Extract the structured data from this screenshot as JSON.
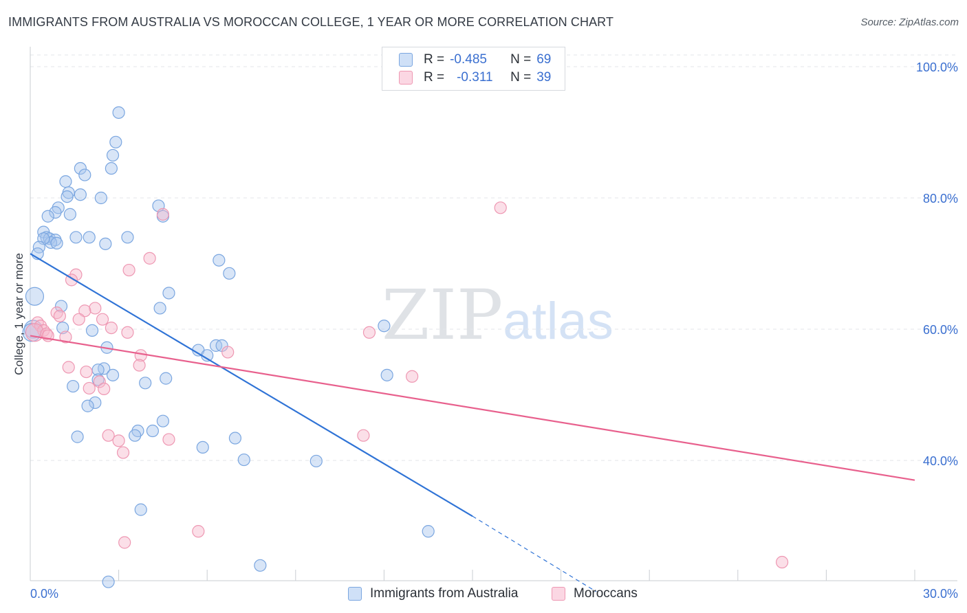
{
  "title": "IMMIGRANTS FROM AUSTRALIA VS MOROCCAN COLLEGE, 1 YEAR OR MORE CORRELATION CHART",
  "source": "Source: ZipAtlas.com",
  "watermark": {
    "zip": "ZIP",
    "atlas": "atlas"
  },
  "legend": {
    "rows": [
      {
        "r_label": "R =",
        "r_value": "-0.485",
        "n_label": "N =",
        "n_value": "69",
        "color": "#a9c6ee"
      },
      {
        "r_label": "R =",
        "r_value": "-0.311",
        "n_label": "N =",
        "n_value": "39",
        "color": "#f6b8cb"
      }
    ]
  },
  "bottom_legend": [
    {
      "label": "Immigrants from Australia",
      "color": "#a9c6ee"
    },
    {
      "label": "Moroccans",
      "color": "#f6b8cb"
    }
  ],
  "chart_data": {
    "type": "scatter",
    "title": "IMMIGRANTS FROM AUSTRALIA VS MOROCCAN COLLEGE, 1 YEAR OR MORE CORRELATION CHART",
    "xlabel": "",
    "ylabel": "College, 1 year or more",
    "xlim": [
      0,
      30
    ],
    "ylim": [
      22,
      102
    ],
    "x_tick_labels": [
      {
        "value": 0,
        "label": "0.0%"
      },
      {
        "value": 30,
        "label": "30.0%"
      }
    ],
    "x_minor_ticks": [
      0,
      3,
      6,
      9,
      12,
      15,
      18,
      21,
      24,
      27,
      30
    ],
    "y_ticks": [
      {
        "value": 100,
        "label": "100.0%"
      },
      {
        "value": 80,
        "label": "80.0%"
      },
      {
        "value": 60,
        "label": "60.0%"
      },
      {
        "value": 40,
        "label": "40.0%"
      }
    ],
    "series": [
      {
        "name": "Immigrants from Australia",
        "color": "#a9c6ee",
        "stroke": "#7aa6e0",
        "line_color": "#2f73d6",
        "trend": {
          "x0": 0.0,
          "y0": 71.5,
          "x1": 15.0,
          "y1": 31.5,
          "dash_to_x": 19.2,
          "dash_to_y": 20.0
        },
        "points": [
          [
            3.0,
            93.0
          ],
          [
            2.9,
            88.5
          ],
          [
            2.8,
            86.5
          ],
          [
            2.75,
            84.5
          ],
          [
            1.7,
            84.5
          ],
          [
            1.85,
            83.5
          ],
          [
            1.2,
            82.5
          ],
          [
            1.3,
            80.8
          ],
          [
            1.25,
            80.2
          ],
          [
            1.7,
            80.5
          ],
          [
            2.4,
            80.0
          ],
          [
            4.35,
            78.8
          ],
          [
            0.95,
            78.5
          ],
          [
            0.85,
            77.8
          ],
          [
            1.35,
            77.5
          ],
          [
            0.6,
            77.2
          ],
          [
            4.5,
            77.2
          ],
          [
            0.45,
            74.8
          ],
          [
            0.55,
            74.0
          ],
          [
            0.65,
            73.8
          ],
          [
            0.85,
            73.6
          ],
          [
            0.7,
            73.2
          ],
          [
            0.9,
            73.1
          ],
          [
            0.45,
            73.8
          ],
          [
            1.55,
            74.0
          ],
          [
            2.0,
            74.0
          ],
          [
            3.3,
            74.0
          ],
          [
            2.55,
            73.0
          ],
          [
            0.3,
            72.5
          ],
          [
            0.25,
            71.5
          ],
          [
            6.4,
            70.5
          ],
          [
            6.75,
            68.5
          ],
          [
            0.15,
            65.0
          ],
          [
            4.7,
            65.5
          ],
          [
            1.05,
            63.5
          ],
          [
            4.4,
            63.2
          ],
          [
            0.1,
            60.0
          ],
          [
            1.1,
            60.2
          ],
          [
            2.1,
            59.8
          ],
          [
            12.0,
            60.5
          ],
          [
            2.6,
            57.2
          ],
          [
            5.7,
            56.8
          ],
          [
            6.3,
            57.5
          ],
          [
            6.5,
            57.5
          ],
          [
            6.0,
            56.0
          ],
          [
            2.5,
            54.0
          ],
          [
            2.3,
            53.8
          ],
          [
            12.1,
            53.0
          ],
          [
            2.8,
            53.0
          ],
          [
            4.6,
            52.5
          ],
          [
            2.3,
            52.3
          ],
          [
            3.9,
            51.8
          ],
          [
            1.45,
            51.3
          ],
          [
            2.2,
            48.8
          ],
          [
            1.95,
            48.3
          ],
          [
            4.5,
            46.0
          ],
          [
            4.15,
            44.5
          ],
          [
            3.65,
            44.5
          ],
          [
            3.55,
            43.8
          ],
          [
            1.6,
            43.6
          ],
          [
            6.95,
            43.4
          ],
          [
            5.85,
            42.0
          ],
          [
            7.25,
            40.1
          ],
          [
            9.7,
            39.9
          ],
          [
            3.75,
            32.5
          ],
          [
            13.5,
            29.2
          ],
          [
            7.8,
            24.0
          ],
          [
            2.65,
            21.5
          ],
          [
            0.05,
            59.5
          ]
        ]
      },
      {
        "name": "Moroccans",
        "color": "#f6b8cb",
        "stroke": "#ee97b2",
        "line_color": "#e8608d",
        "trend": {
          "x0": 0.0,
          "y0": 59.0,
          "x1": 30.0,
          "y1": 37.0
        },
        "points": [
          [
            15.95,
            78.5
          ],
          [
            4.5,
            77.5
          ],
          [
            4.05,
            70.8
          ],
          [
            3.35,
            69.0
          ],
          [
            1.55,
            68.3
          ],
          [
            1.4,
            67.5
          ],
          [
            2.2,
            63.2
          ],
          [
            1.85,
            62.8
          ],
          [
            0.9,
            62.5
          ],
          [
            1.0,
            62.0
          ],
          [
            1.65,
            61.5
          ],
          [
            2.45,
            61.5
          ],
          [
            0.25,
            61.0
          ],
          [
            0.35,
            60.5
          ],
          [
            2.75,
            60.2
          ],
          [
            0.45,
            59.8
          ],
          [
            0.15,
            59.5
          ],
          [
            0.55,
            59.3
          ],
          [
            3.3,
            59.5
          ],
          [
            11.5,
            59.5
          ],
          [
            1.2,
            58.8
          ],
          [
            0.6,
            59.0
          ],
          [
            3.75,
            56.0
          ],
          [
            6.7,
            56.5
          ],
          [
            1.3,
            54.2
          ],
          [
            3.7,
            54.5
          ],
          [
            1.9,
            53.5
          ],
          [
            2.35,
            52.0
          ],
          [
            12.95,
            52.8
          ],
          [
            2.0,
            51.0
          ],
          [
            2.5,
            50.9
          ],
          [
            2.65,
            43.8
          ],
          [
            3.0,
            43.0
          ],
          [
            4.7,
            43.2
          ],
          [
            11.3,
            43.8
          ],
          [
            3.15,
            41.2
          ],
          [
            5.7,
            29.2
          ],
          [
            3.2,
            27.5
          ],
          [
            25.5,
            24.5
          ]
        ]
      }
    ]
  }
}
